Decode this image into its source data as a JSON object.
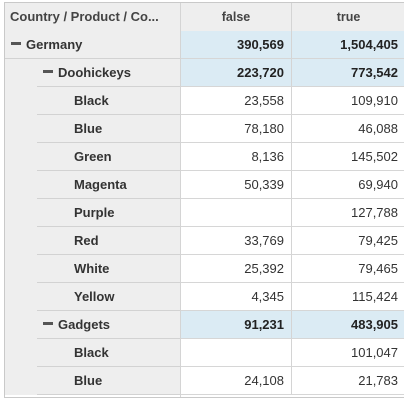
{
  "header": {
    "dimension_label": "Country / Product / Co...",
    "col_false": "false",
    "col_true": "true"
  },
  "rows": [
    {
      "label": "Germany",
      "level": 0,
      "type": "subtotal",
      "false": "390,569",
      "true": "1,504,405"
    },
    {
      "label": "Doohickeys",
      "level": 1,
      "type": "subtotal",
      "false": "223,720",
      "true": "773,542"
    },
    {
      "label": "Black",
      "level": 2,
      "type": "leaf",
      "false": "23,558",
      "true": "109,910"
    },
    {
      "label": "Blue",
      "level": 2,
      "type": "leaf",
      "false": "78,180",
      "true": "46,088"
    },
    {
      "label": "Green",
      "level": 2,
      "type": "leaf",
      "false": "8,136",
      "true": "145,502"
    },
    {
      "label": "Magenta",
      "level": 2,
      "type": "leaf",
      "false": "50,339",
      "true": "69,940"
    },
    {
      "label": "Purple",
      "level": 2,
      "type": "leaf",
      "false": "",
      "true": "127,788"
    },
    {
      "label": "Red",
      "level": 2,
      "type": "leaf",
      "false": "33,769",
      "true": "79,425"
    },
    {
      "label": "White",
      "level": 2,
      "type": "leaf",
      "false": "25,392",
      "true": "79,465"
    },
    {
      "label": "Yellow",
      "level": 2,
      "type": "leaf",
      "false": "4,345",
      "true": "115,424"
    },
    {
      "label": "Gadgets",
      "level": 1,
      "type": "subtotal",
      "false": "91,231",
      "true": "483,905"
    },
    {
      "label": "Black",
      "level": 2,
      "type": "leaf",
      "false": "",
      "true": "101,047"
    },
    {
      "label": "Blue",
      "level": 2,
      "type": "leaf",
      "false": "24,108",
      "true": "21,783"
    }
  ],
  "colors": {
    "subtotal_bg": "#dbebf4",
    "label_bg": "#eeeeee",
    "text": "#333333"
  }
}
